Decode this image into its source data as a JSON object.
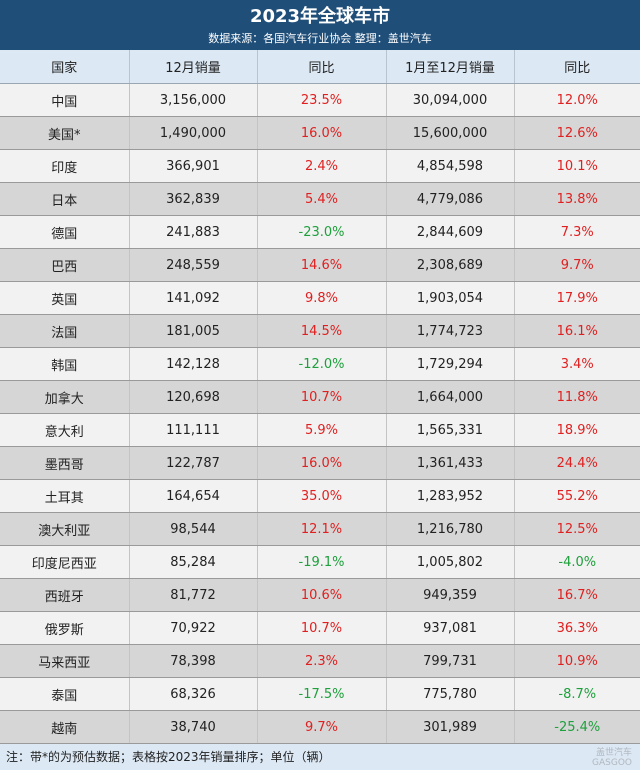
{
  "header": {
    "title": "2023年全球车市",
    "subtitle": "数据来源：各国汽车行业协会  整理：盖世汽车"
  },
  "columns": [
    "国家",
    "12月销量",
    "同比",
    "1月至12月销量",
    "同比"
  ],
  "rows": [
    {
      "country": "中国",
      "dec_sales": "3,156,000",
      "dec_yoy": "23.5%",
      "ytd_sales": "30,094,000",
      "ytd_yoy": "12.0%"
    },
    {
      "country": "美国*",
      "dec_sales": "1,490,000",
      "dec_yoy": "16.0%",
      "ytd_sales": "15,600,000",
      "ytd_yoy": "12.6%"
    },
    {
      "country": "印度",
      "dec_sales": "366,901",
      "dec_yoy": "2.4%",
      "ytd_sales": "4,854,598",
      "ytd_yoy": "10.1%"
    },
    {
      "country": "日本",
      "dec_sales": "362,839",
      "dec_yoy": "5.4%",
      "ytd_sales": "4,779,086",
      "ytd_yoy": "13.8%"
    },
    {
      "country": "德国",
      "dec_sales": "241,883",
      "dec_yoy": "-23.0%",
      "ytd_sales": "2,844,609",
      "ytd_yoy": "7.3%"
    },
    {
      "country": "巴西",
      "dec_sales": "248,559",
      "dec_yoy": "14.6%",
      "ytd_sales": "2,308,689",
      "ytd_yoy": "9.7%"
    },
    {
      "country": "英国",
      "dec_sales": "141,092",
      "dec_yoy": "9.8%",
      "ytd_sales": "1,903,054",
      "ytd_yoy": "17.9%"
    },
    {
      "country": "法国",
      "dec_sales": "181,005",
      "dec_yoy": "14.5%",
      "ytd_sales": "1,774,723",
      "ytd_yoy": "16.1%"
    },
    {
      "country": "韩国",
      "dec_sales": "142,128",
      "dec_yoy": "-12.0%",
      "ytd_sales": "1,729,294",
      "ytd_yoy": "3.4%"
    },
    {
      "country": "加拿大",
      "dec_sales": "120,698",
      "dec_yoy": "10.7%",
      "ytd_sales": "1,664,000",
      "ytd_yoy": "11.8%"
    },
    {
      "country": "意大利",
      "dec_sales": "111,111",
      "dec_yoy": "5.9%",
      "ytd_sales": "1,565,331",
      "ytd_yoy": "18.9%"
    },
    {
      "country": "墨西哥",
      "dec_sales": "122,787",
      "dec_yoy": "16.0%",
      "ytd_sales": "1,361,433",
      "ytd_yoy": "24.4%"
    },
    {
      "country": "土耳其",
      "dec_sales": "164,654",
      "dec_yoy": "35.0%",
      "ytd_sales": "1,283,952",
      "ytd_yoy": "55.2%"
    },
    {
      "country": "澳大利亚",
      "dec_sales": "98,544",
      "dec_yoy": "12.1%",
      "ytd_sales": "1,216,780",
      "ytd_yoy": "12.5%"
    },
    {
      "country": "印度尼西亚",
      "dec_sales": "85,284",
      "dec_yoy": "-19.1%",
      "ytd_sales": "1,005,802",
      "ytd_yoy": "-4.0%"
    },
    {
      "country": "西班牙",
      "dec_sales": "81,772",
      "dec_yoy": "10.6%",
      "ytd_sales": "949,359",
      "ytd_yoy": "16.7%"
    },
    {
      "country": "俄罗斯",
      "dec_sales": "70,922",
      "dec_yoy": "10.7%",
      "ytd_sales": "937,081",
      "ytd_yoy": "36.3%"
    },
    {
      "country": "马来西亚",
      "dec_sales": "78,398",
      "dec_yoy": "2.3%",
      "ytd_sales": "799,731",
      "ytd_yoy": "10.9%"
    },
    {
      "country": "泰国",
      "dec_sales": "68,326",
      "dec_yoy": "-17.5%",
      "ytd_sales": "775,780",
      "ytd_yoy": "-8.7%"
    },
    {
      "country": "越南",
      "dec_sales": "38,740",
      "dec_yoy": "9.7%",
      "ytd_sales": "301,989",
      "ytd_yoy": "-25.4%"
    }
  ],
  "footer": {
    "note": "注：带*的为预估数据；表格按2023年销量排序；单位（辆）"
  },
  "colors": {
    "header_bg": "#1f4e79",
    "positive": "#e02020",
    "negative": "#1ea03c"
  }
}
